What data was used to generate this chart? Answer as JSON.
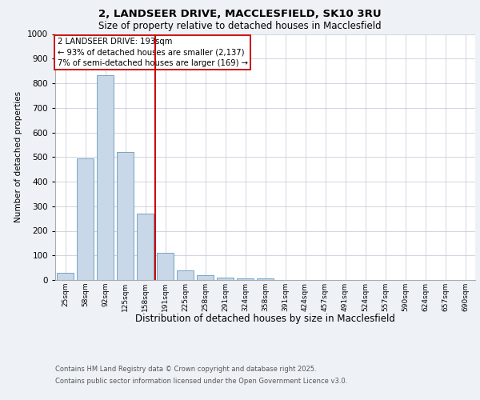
{
  "title1": "2, LANDSEER DRIVE, MACCLESFIELD, SK10 3RU",
  "title2": "Size of property relative to detached houses in Macclesfield",
  "xlabel": "Distribution of detached houses by size in Macclesfield",
  "ylabel": "Number of detached properties",
  "categories": [
    "25sqm",
    "58sqm",
    "92sqm",
    "125sqm",
    "158sqm",
    "191sqm",
    "225sqm",
    "258sqm",
    "291sqm",
    "324sqm",
    "358sqm",
    "391sqm",
    "424sqm",
    "457sqm",
    "491sqm",
    "524sqm",
    "557sqm",
    "590sqm",
    "624sqm",
    "657sqm",
    "690sqm"
  ],
  "values": [
    28,
    493,
    833,
    521,
    270,
    110,
    38,
    20,
    10,
    5,
    5,
    0,
    0,
    0,
    0,
    0,
    0,
    0,
    0,
    0,
    0
  ],
  "bar_color": "#c8d8e8",
  "bar_edge_color": "#6699bb",
  "vline_index": 5,
  "vline_color": "#cc0000",
  "annotation_text": "2 LANDSEER DRIVE: 193sqm\n← 93% of detached houses are smaller (2,137)\n7% of semi-detached houses are larger (169) →",
  "annotation_box_color": "#ffffff",
  "annotation_box_edge": "#cc0000",
  "ylim": [
    0,
    1000
  ],
  "yticks": [
    0,
    100,
    200,
    300,
    400,
    500,
    600,
    700,
    800,
    900,
    1000
  ],
  "footer1": "Contains HM Land Registry data © Crown copyright and database right 2025.",
  "footer2": "Contains public sector information licensed under the Open Government Licence v3.0.",
  "background_color": "#eef2f7",
  "plot_background": "#ffffff",
  "grid_color": "#c8d0dc"
}
